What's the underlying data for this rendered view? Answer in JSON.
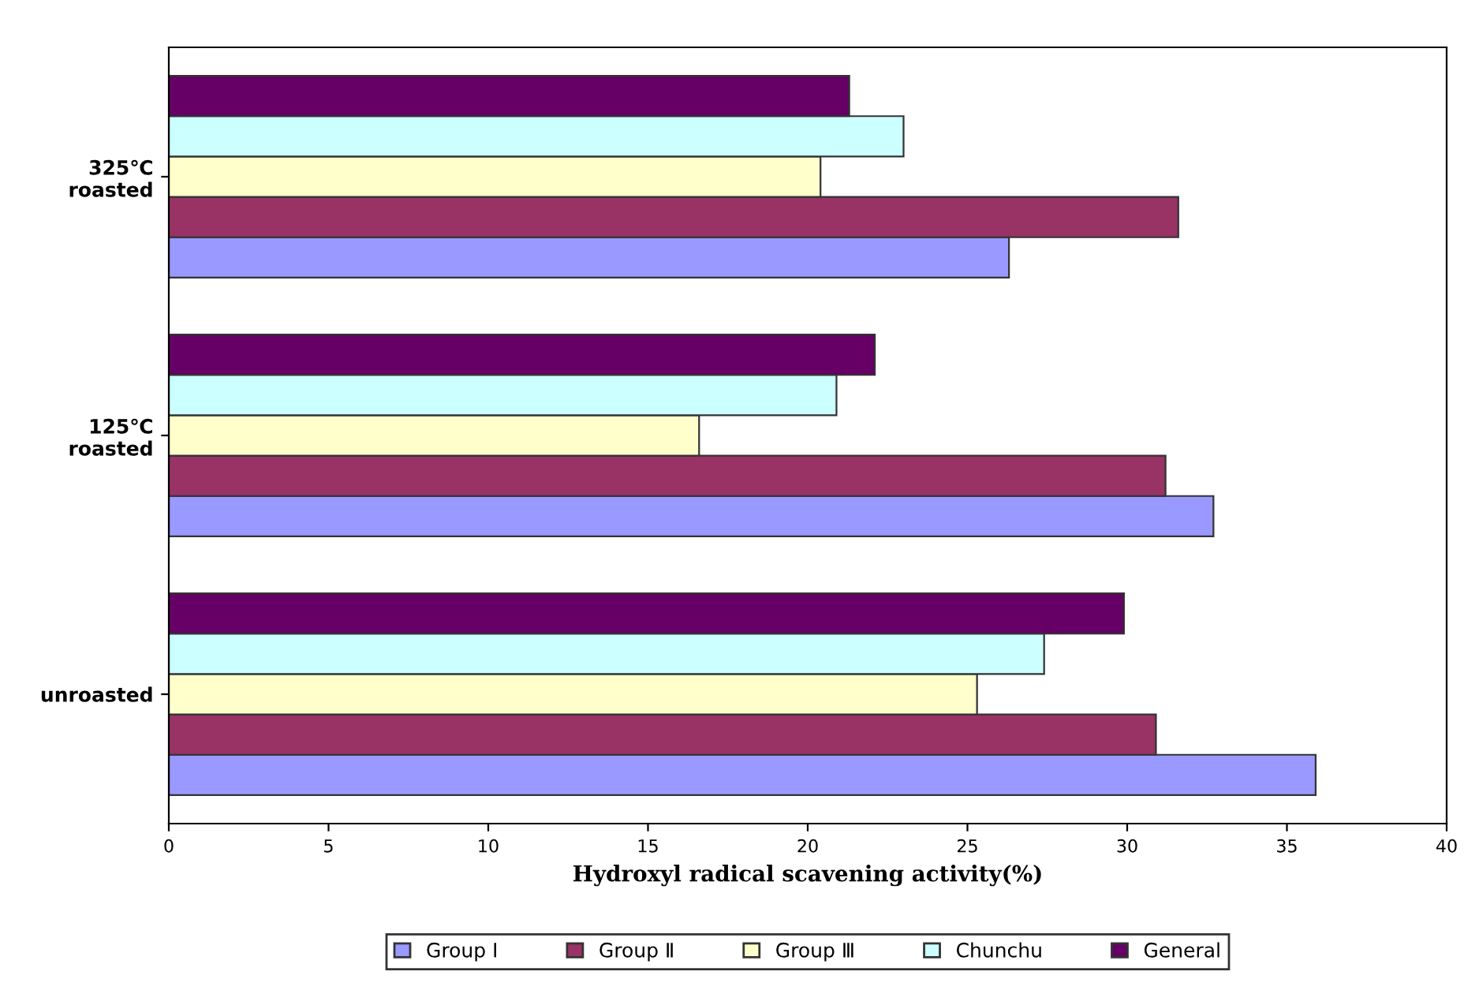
{
  "chart_data": {
    "type": "bar",
    "orientation": "horizontal",
    "xlabel": "Hydroxyl radical scavening activity(%)",
    "categories": [
      "325℃\nroasted",
      "125℃\nroasted",
      "unroasted"
    ],
    "series": [
      {
        "name": "Group Ⅰ",
        "color": "#9999ff",
        "values": [
          26.3,
          32.7,
          35.9
        ]
      },
      {
        "name": "Group Ⅱ",
        "color": "#993366",
        "values": [
          31.6,
          31.2,
          30.9
        ]
      },
      {
        "name": "Group Ⅲ",
        "color": "#ffffcc",
        "values": [
          20.4,
          16.6,
          25.3
        ]
      },
      {
        "name": "Chunchu",
        "color": "#ccffff",
        "values": [
          23.0,
          20.9,
          27.4
        ]
      },
      {
        "name": "General",
        "color": "#660066",
        "values": [
          21.3,
          22.1,
          29.9
        ]
      }
    ],
    "xlim": [
      0,
      40
    ],
    "xticks": [
      0,
      5,
      10,
      15,
      20,
      25,
      30,
      35,
      40
    ],
    "grid": false,
    "legend": "bottom"
  }
}
